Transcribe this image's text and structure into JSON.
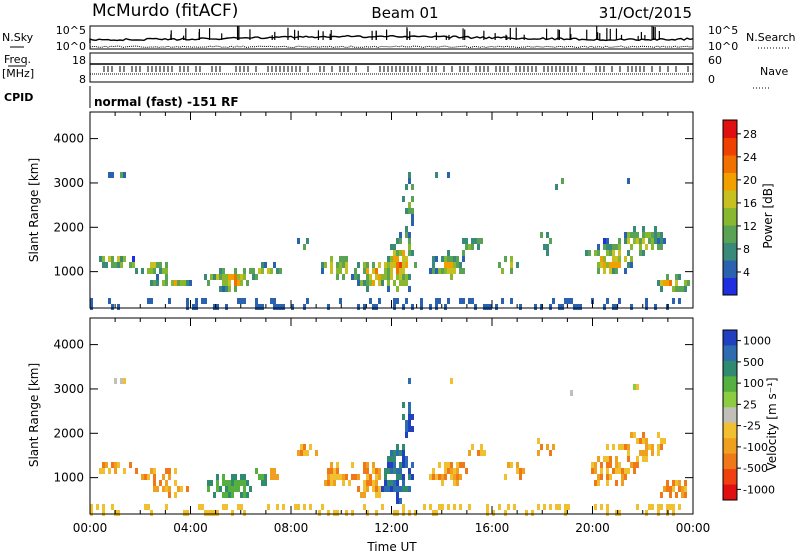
{
  "header": {
    "station": "McMurdo (fitACF)",
    "beam": "Beam 01",
    "date": "31/Oct/2015"
  },
  "aux_panels": {
    "nsky_label": "N.Sky",
    "nsearch_label": "N.Search",
    "noise_ticks_left": [
      "10^5",
      "10^0"
    ],
    "noise_ticks_right": [
      "10^5",
      "10^0"
    ],
    "freq_label_1": "Freq.",
    "freq_label_2": "[MHz]",
    "freq_ticks_left": [
      "18",
      "8"
    ],
    "nave_label": "Nave",
    "nave_ticks_right": [
      "60",
      "0"
    ],
    "cpid_label": "CPID",
    "cpid_text": "normal (fast) -151 RF"
  },
  "chart_data": [
    {
      "type": "heatmap",
      "title": "",
      "xlabel": "",
      "ylabel": "Slant Range [km]",
      "ylim": [
        180,
        4600
      ],
      "xlim_hours": [
        0,
        24
      ],
      "y_ticks": [
        "1000",
        "2000",
        "3000",
        "4000"
      ],
      "colorbar": {
        "label": "Power [dB]",
        "ticks": [
          "4",
          "8",
          "12",
          "16",
          "20",
          "24",
          "28"
        ],
        "colors": [
          "#1f2fe0",
          "#2a62b0",
          "#3a8a7a",
          "#5aa355",
          "#88b830",
          "#c8c020",
          "#f2a000",
          "#f07000",
          "#ef4000",
          "#e01010"
        ]
      }
    },
    {
      "type": "heatmap",
      "title": "",
      "xlabel": "Time UT",
      "ylabel": "Slant Range [km]",
      "ylim": [
        180,
        4600
      ],
      "xlim_hours": [
        0,
        24
      ],
      "y_ticks": [
        "1000",
        "2000",
        "3000",
        "4000"
      ],
      "x_ticks": [
        "00:00",
        "04:00",
        "08:00",
        "12:00",
        "16:00",
        "20:00",
        "00:00"
      ],
      "colorbar": {
        "label": "Velocity [m s⁻¹]",
        "ticks": [
          "1000",
          "500",
          "100",
          "25",
          "-25",
          "-100",
          "-500",
          "-1000"
        ],
        "colors": [
          "#2040c0",
          "#2e6cb0",
          "#2f8a70",
          "#55b040",
          "#8ccc40",
          "#c0c0b8",
          "#f0c030",
          "#f0a020",
          "#f07818",
          "#f04010",
          "#e01010"
        ]
      }
    }
  ]
}
